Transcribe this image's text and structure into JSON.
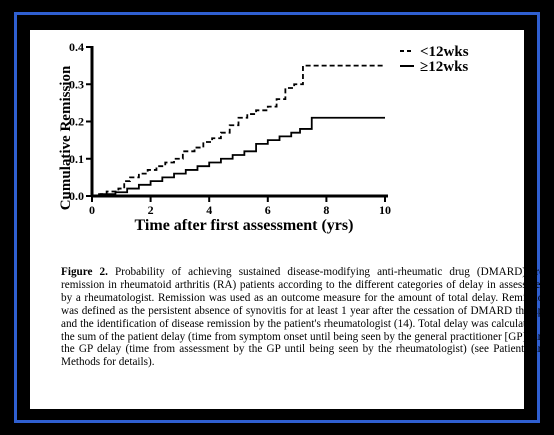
{
  "chart_data": {
    "type": "line",
    "step": true,
    "xlabel": "Time after first assessment (yrs)",
    "ylabel": "Cumulative Remission",
    "xlim": [
      0,
      10
    ],
    "ylim": [
      0,
      0.4
    ],
    "xticks": [
      0,
      2,
      4,
      6,
      8,
      10
    ],
    "yticks": [
      0.0,
      0.1,
      0.2,
      0.3,
      0.4
    ],
    "ytick_labels": [
      "0.0",
      "0.1",
      "0.2",
      "0.3",
      "0.4"
    ],
    "grid": false,
    "legend_position": "top-right",
    "series": [
      {
        "name": "<12wks",
        "style": "dashed",
        "x": [
          0,
          0.2,
          0.5,
          0.9,
          1.1,
          1.3,
          1.6,
          1.9,
          2.2,
          2.5,
          2.8,
          3.1,
          3.5,
          3.8,
          4.1,
          4.4,
          4.7,
          5.0,
          5.3,
          5.6,
          6.0,
          6.3,
          6.6,
          6.9,
          7.2,
          7.6,
          8.0,
          8.5,
          9.0,
          9.5,
          10.0
        ],
        "y": [
          0,
          0.005,
          0.012,
          0.02,
          0.04,
          0.05,
          0.06,
          0.07,
          0.08,
          0.09,
          0.1,
          0.12,
          0.13,
          0.145,
          0.155,
          0.17,
          0.19,
          0.21,
          0.22,
          0.23,
          0.24,
          0.26,
          0.29,
          0.3,
          0.35,
          0.35,
          0.35,
          0.35,
          0.35,
          0.35,
          0.35
        ]
      },
      {
        "name": "≥12wks",
        "style": "solid",
        "x": [
          0,
          0.3,
          0.8,
          1.2,
          1.6,
          2.0,
          2.4,
          2.8,
          3.2,
          3.6,
          4.0,
          4.4,
          4.8,
          5.2,
          5.6,
          6.0,
          6.4,
          6.8,
          7.1,
          7.5,
          8.0,
          8.5,
          9.0,
          9.5,
          10.0
        ],
        "y": [
          0,
          0.005,
          0.01,
          0.02,
          0.03,
          0.04,
          0.05,
          0.06,
          0.07,
          0.08,
          0.09,
          0.1,
          0.11,
          0.12,
          0.14,
          0.15,
          0.16,
          0.17,
          0.18,
          0.21,
          0.21,
          0.21,
          0.21,
          0.21,
          0.21
        ]
      }
    ]
  },
  "caption": {
    "label": "Figure 2.",
    "text": "Probability of achieving sustained disease-modifying anti-rheumatic drug (DMARD)–free remission in rheumatoid arthritis (RA) patients according to the different categories of delay in assessment by a rheumatologist. Remission was used as an outcome measure for the amount of total delay. Remission was defined as the persistent absence of synovitis for at least 1 year after the cessation of DMARD therapy and the identification of disease remission by the patient's rheumatologist (14). Total delay was calculated as the sum of the patient delay (time from symptom onset until being seen by the general practitioner [GP]) and the GP delay (time from assessment by the GP until being seen by the rheumatologist) (see Patients and Methods for details)."
  }
}
